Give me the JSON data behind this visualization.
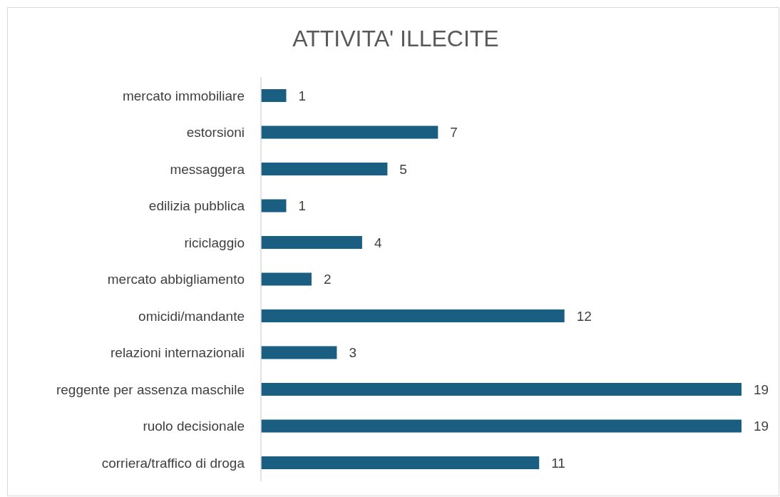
{
  "chart_data": {
    "type": "bar",
    "orientation": "horizontal",
    "title": "ATTIVITA' ILLECITE",
    "categories": [
      "mercato immobiliare",
      "estorsioni",
      "messaggera",
      "edilizia pubblica",
      "riciclaggio",
      "mercato abbigliamento",
      "omicidi/mandante",
      "relazioni internazionali",
      "reggente per assenza maschile",
      "ruolo decisionale",
      "corriera/traffico di droga"
    ],
    "values": [
      1,
      7,
      5,
      1,
      4,
      2,
      12,
      3,
      19,
      19,
      11
    ],
    "color": "#1a5e82",
    "data_labels": true
  }
}
